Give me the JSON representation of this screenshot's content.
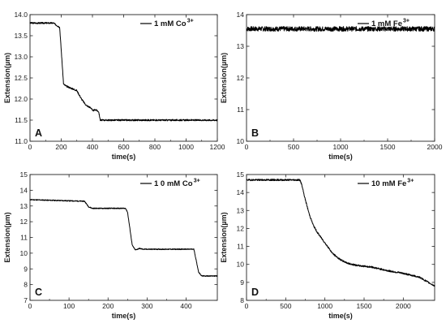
{
  "chart_data": [
    {
      "id": "A",
      "type": "line",
      "panel_letter": "A",
      "legend": {
        "main": "1 mM Co",
        "sup": "3+",
        "placement": "top-right"
      },
      "xlabel": "time(s)",
      "ylabel": "Extension(µm)",
      "xlim": [
        0,
        1200
      ],
      "ylim": [
        11.0,
        14.0
      ],
      "xticks": [
        "0",
        "200",
        "400",
        "600",
        "800",
        "1000",
        "1200"
      ],
      "yticks": [
        "11.0",
        "11.5",
        "12.0",
        "12.5",
        "13.0",
        "13.5",
        "14.0"
      ],
      "grid": false,
      "series": [
        {
          "x": [
            0,
            150,
            190,
            215,
            235,
            300,
            330,
            360,
            395,
            400,
            420,
            440,
            450,
            1200
          ],
          "y": [
            13.8,
            13.8,
            13.7,
            12.35,
            12.3,
            12.2,
            12.0,
            11.85,
            11.78,
            11.72,
            11.75,
            11.7,
            11.5,
            11.5
          ]
        }
      ]
    },
    {
      "id": "B",
      "type": "line",
      "panel_letter": "B",
      "legend": {
        "main": "1 mM Fe",
        "sup": "3+",
        "placement": "top-right"
      },
      "xlabel": "time(s)",
      "ylabel": "Extension(µm)",
      "xlim": [
        0,
        2000
      ],
      "ylim": [
        10,
        14
      ],
      "xticks": [
        "0",
        "500",
        "1000",
        "1500",
        "2000"
      ],
      "yticks": [
        "10",
        "11",
        "12",
        "13",
        "14"
      ],
      "grid": false,
      "series": [
        {
          "x": [
            0,
            2000
          ],
          "y": [
            13.55,
            13.55
          ]
        }
      ]
    },
    {
      "id": "C",
      "type": "line",
      "panel_letter": "C",
      "legend": {
        "main": "1 0 mM Co",
        "sup": "3+",
        "placement": "top-right"
      },
      "xlabel": "time(s)",
      "ylabel": "Extension(µm)",
      "xlim": [
        0,
        480
      ],
      "ylim": [
        7,
        15
      ],
      "xticks": [
        "0",
        "100",
        "200",
        "300",
        "400"
      ],
      "yticks": [
        "7",
        "8",
        "9",
        "10",
        "11",
        "12",
        "13",
        "14",
        "15"
      ],
      "grid": false,
      "series": [
        {
          "x": [
            0,
            140,
            150,
            160,
            245,
            250,
            262,
            270,
            280,
            290,
            420,
            432,
            440,
            480
          ],
          "y": [
            13.4,
            13.3,
            12.95,
            12.85,
            12.85,
            12.6,
            10.5,
            10.2,
            10.3,
            10.25,
            10.25,
            8.8,
            8.55,
            8.55
          ]
        }
      ]
    },
    {
      "id": "D",
      "type": "line",
      "panel_letter": "D",
      "legend": {
        "main": "10 mM Fe",
        "sup": "3+",
        "placement": "top-right"
      },
      "xlabel": "time(s)",
      "ylabel": "Extension(µm)",
      "xlim": [
        0,
        2400
      ],
      "ylim": [
        8,
        15
      ],
      "xticks": [
        "0",
        "500",
        "1000",
        "1500",
        "2000"
      ],
      "yticks": [
        "8",
        "9",
        "10",
        "11",
        "12",
        "13",
        "14",
        "15"
      ],
      "grid": false,
      "series": [
        {
          "x": [
            0,
            680,
            700,
            750,
            800,
            850,
            900,
            950,
            1000,
            1100,
            1200,
            1300,
            1400,
            1600,
            1800,
            2000,
            2200,
            2300,
            2400
          ],
          "y": [
            14.7,
            14.7,
            14.5,
            13.6,
            12.8,
            12.2,
            11.8,
            11.5,
            11.2,
            10.6,
            10.25,
            10.05,
            9.95,
            9.85,
            9.65,
            9.5,
            9.3,
            9.05,
            8.8
          ]
        }
      ]
    }
  ]
}
